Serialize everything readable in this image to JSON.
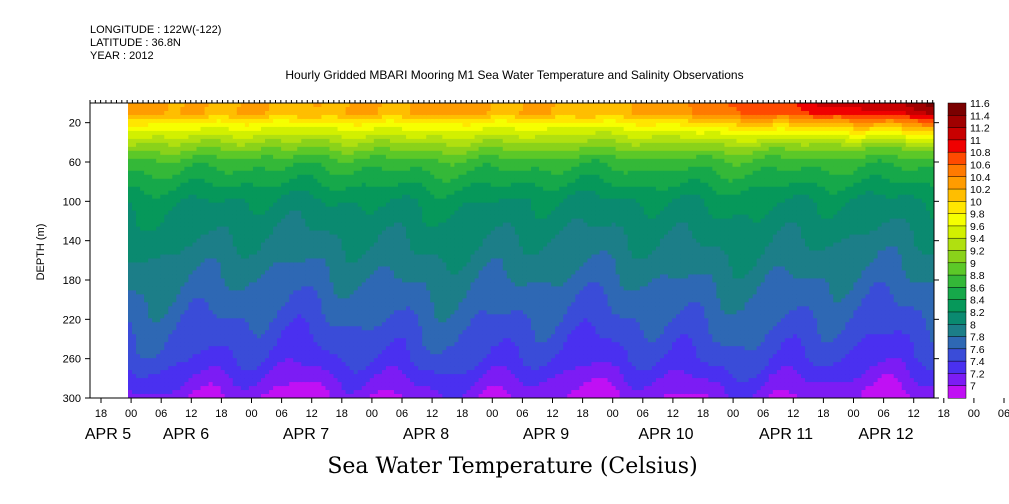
{
  "header": {
    "longitude": "LONGITUDE : 122W(-122)",
    "latitude": "LATITUDE : 36.8N",
    "year": "YEAR : 2012"
  },
  "chart_data": {
    "type": "heatmap",
    "title": "Hourly Gridded MBARI Mooring M1 Sea Water Temperature and Salinity Observations",
    "xlabel": "",
    "ylabel": "DEPTH (m)",
    "bottom_title": "Sea Water Temperature (Celsius)",
    "ylim": [
      300,
      0
    ],
    "y_ticks": [
      20,
      60,
      100,
      140,
      180,
      220,
      260,
      300
    ],
    "x_hour_labels": [
      "18",
      "00",
      "06",
      "12",
      "18",
      "00",
      "06",
      "12",
      "18",
      "00",
      "06",
      "12",
      "18",
      "00",
      "06",
      "12",
      "18",
      "00",
      "06",
      "12",
      "18",
      "00",
      "06",
      "12",
      "18",
      "00",
      "06",
      "12",
      "18",
      "00",
      "06",
      "12"
    ],
    "x_day_labels": [
      "APR  5",
      "APR  6",
      "APR  7",
      "APR  8",
      "APR  9",
      "APR 10",
      "APR 11",
      "APR 12"
    ],
    "colorbar": {
      "levels": [
        "11.6",
        "11.4",
        "11.2",
        "11",
        "10.8",
        "10.6",
        "10.4",
        "10.2",
        "10",
        "9.8",
        "9.6",
        "9.4",
        "9.2",
        "9",
        "8.8",
        "8.6",
        "8.4",
        "8.2",
        "8",
        "7.8",
        "7.6",
        "7.4",
        "7.2",
        "7"
      ],
      "colors": [
        "#7a0000",
        "#a00000",
        "#c80000",
        "#f00000",
        "#ff4a00",
        "#ff7a00",
        "#ff9c00",
        "#ffbe00",
        "#ffe600",
        "#f6ff00",
        "#d2f000",
        "#b0e010",
        "#8ad21a",
        "#5cc828",
        "#34b838",
        "#16a84a",
        "#06985a",
        "#0a8a70",
        "#1c7e88",
        "#2e68b4",
        "#3a4cd8",
        "#4a30f0",
        "#7c1cf4",
        "#c010f4"
      ]
    },
    "surface_temperature_trend": "~10.2-10.6 near surface Apr 5-9, rising to ~11.0-11.6 Apr 10-12",
    "depth_temperature_profile": [
      {
        "depth": 10,
        "temp": 10.4
      },
      {
        "depth": 20,
        "temp": 10.0
      },
      {
        "depth": 40,
        "temp": 9.4
      },
      {
        "depth": 60,
        "temp": 8.9
      },
      {
        "depth": 100,
        "temp": 8.4
      },
      {
        "depth": 140,
        "temp": 8.2
      },
      {
        "depth": 180,
        "temp": 8.0
      },
      {
        "depth": 220,
        "temp": 7.8
      },
      {
        "depth": 260,
        "temp": 7.6
      },
      {
        "depth": 300,
        "temp": 7.2
      }
    ]
  }
}
